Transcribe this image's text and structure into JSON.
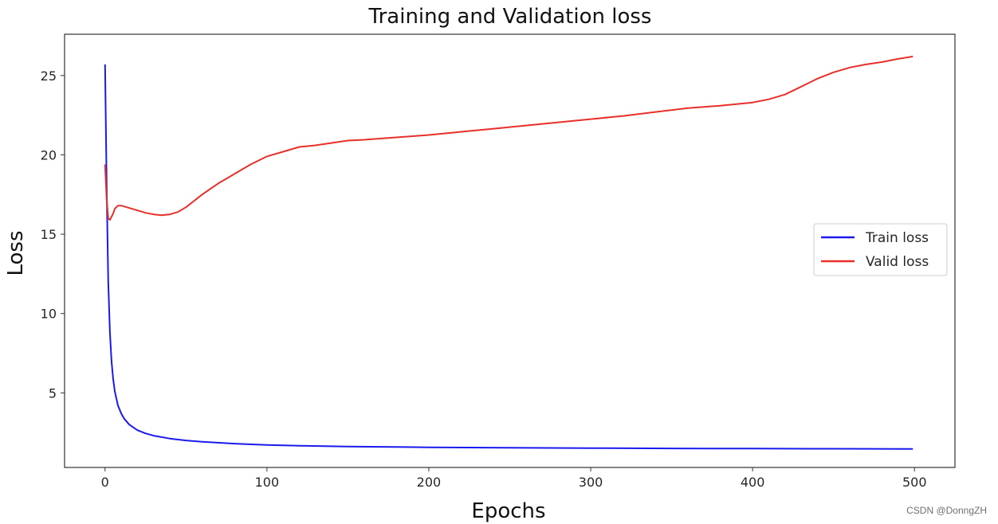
{
  "chart_data": {
    "type": "line",
    "title": "Training and Validation loss",
    "xlabel": "Epochs",
    "ylabel": "Loss",
    "xlim": [
      -25,
      525
    ],
    "ylim": [
      0.3,
      27.6
    ],
    "xticks": [
      0,
      100,
      200,
      300,
      400,
      500
    ],
    "yticks": [
      5,
      10,
      15,
      20,
      25
    ],
    "grid": false,
    "legend_position": "center-right",
    "series": [
      {
        "name": "Train loss",
        "color": "#1a1aee",
        "x": [
          0,
          1,
          2,
          3,
          4,
          5,
          6,
          8,
          10,
          12,
          15,
          20,
          25,
          30,
          40,
          50,
          60,
          80,
          100,
          125,
          150,
          200,
          250,
          300,
          350,
          400,
          450,
          499
        ],
        "y": [
          25.7,
          18.0,
          12.0,
          8.8,
          7.0,
          5.9,
          5.1,
          4.2,
          3.7,
          3.35,
          3.0,
          2.65,
          2.45,
          2.3,
          2.12,
          2.0,
          1.92,
          1.8,
          1.72,
          1.66,
          1.62,
          1.57,
          1.54,
          1.52,
          1.5,
          1.49,
          1.48,
          1.47
        ]
      },
      {
        "name": "Valid loss",
        "color": "#e8302a",
        "x": [
          0,
          1,
          2,
          3,
          4,
          5,
          6,
          8,
          10,
          15,
          20,
          25,
          30,
          35,
          40,
          45,
          50,
          60,
          70,
          80,
          90,
          100,
          110,
          120,
          130,
          140,
          150,
          160,
          180,
          200,
          220,
          240,
          260,
          280,
          300,
          320,
          340,
          360,
          380,
          400,
          410,
          420,
          430,
          440,
          450,
          460,
          470,
          480,
          490,
          499
        ],
        "y": [
          19.4,
          17.2,
          16.0,
          15.9,
          16.1,
          16.3,
          16.6,
          16.8,
          16.8,
          16.65,
          16.5,
          16.35,
          16.25,
          16.2,
          16.25,
          16.4,
          16.7,
          17.5,
          18.2,
          18.8,
          19.4,
          19.9,
          20.2,
          20.5,
          20.6,
          20.75,
          20.9,
          20.95,
          21.1,
          21.25,
          21.45,
          21.65,
          21.85,
          22.05,
          22.25,
          22.45,
          22.7,
          22.95,
          23.1,
          23.3,
          23.5,
          23.8,
          24.3,
          24.8,
          25.2,
          25.5,
          25.7,
          25.85,
          26.05,
          26.2
        ]
      }
    ]
  },
  "watermark": "CSDN @DonngZH"
}
